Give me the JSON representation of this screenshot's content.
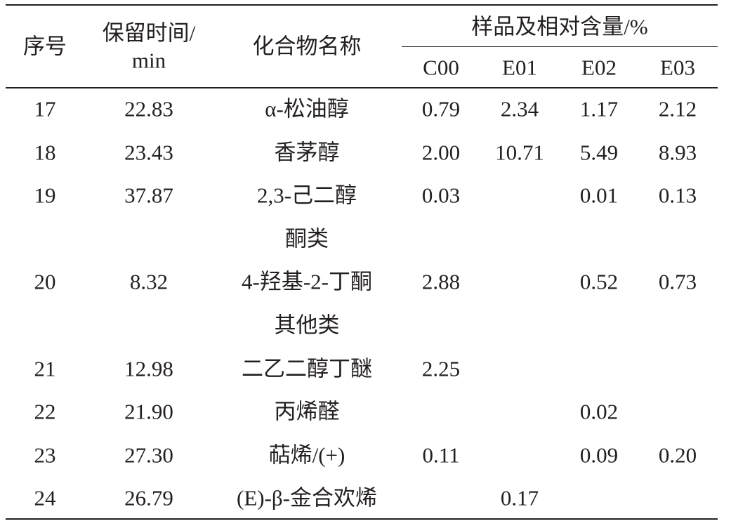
{
  "table": {
    "header": {
      "no": "序号",
      "rt": [
        "保留时间/",
        "min"
      ],
      "name": "化合物名称",
      "group": "样品及相对含量/%",
      "samples": [
        "C00",
        "E01",
        "E02",
        "E03"
      ]
    },
    "rows": [
      {
        "no": "17",
        "rt": "22.83",
        "name": "α-松油醇",
        "values": [
          "0.79",
          "2.34",
          "1.17",
          "2.12"
        ]
      },
      {
        "no": "18",
        "rt": "23.43",
        "name": "香茅醇",
        "values": [
          "2.00",
          "10.71",
          "5.49",
          "8.93"
        ]
      },
      {
        "no": "19",
        "rt": "37.87",
        "name": "2,3-己二醇",
        "values": [
          "0.03",
          null,
          "0.01",
          "0.13"
        ]
      },
      {
        "section": "酮类"
      },
      {
        "no": "20",
        "rt": "8.32",
        "name": "4-羟基-2-丁酮",
        "values": [
          "2.88",
          null,
          "0.52",
          "0.73"
        ]
      },
      {
        "section": "其他类"
      },
      {
        "no": "21",
        "rt": "12.98",
        "name": "二乙二醇丁醚",
        "values": [
          "2.25",
          null,
          null,
          null
        ]
      },
      {
        "no": "22",
        "rt": "21.90",
        "name": "丙烯醛",
        "values": [
          null,
          null,
          "0.02",
          null
        ]
      },
      {
        "no": "23",
        "rt": "27.30",
        "name": "萜烯/(+)",
        "values": [
          "0.11",
          null,
          "0.09",
          "0.20"
        ]
      },
      {
        "no": "24",
        "rt": "26.79",
        "name": "(E)-β-金合欢烯",
        "values": [
          null,
          "0.17",
          null,
          null
        ]
      }
    ]
  }
}
